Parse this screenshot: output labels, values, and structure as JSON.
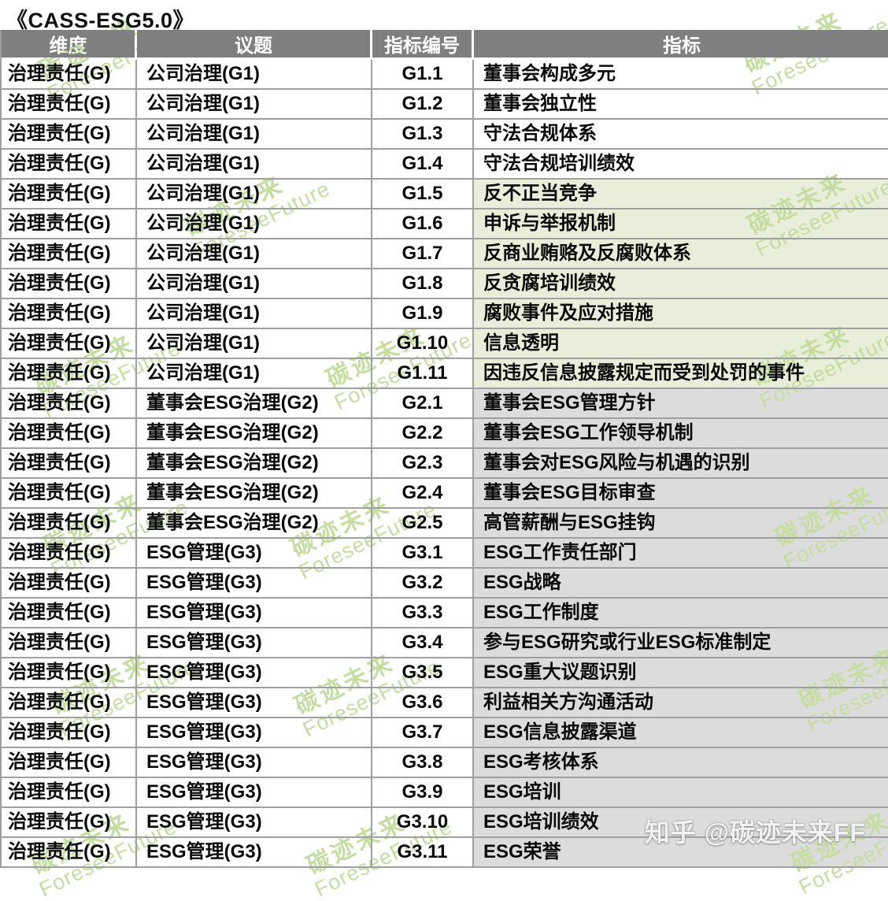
{
  "title": "《CASS-ESG5.0》",
  "watermark": {
    "line1": "碳迹未来",
    "line2": "ForeseeFuture"
  },
  "zhihu_watermark": "知乎 @碳迹未来FF",
  "colors": {
    "header_bg": "#7f7f7f",
    "header_text": "#ffffff",
    "cell_green": "#e9eeda",
    "cell_gray": "#dcdcdc",
    "border": "#a0a0a0",
    "watermark_green": "#c6dda2",
    "zhihu_text": "#f2f2f2"
  },
  "table": {
    "columns": [
      {
        "key": "dimension",
        "label": "维度"
      },
      {
        "key": "topic",
        "label": "议题"
      },
      {
        "key": "code",
        "label": "指标编号"
      },
      {
        "key": "indicator",
        "label": "指标"
      }
    ],
    "rows": [
      {
        "dimension": "治理责任(G)",
        "topic": "公司治理(G1)",
        "code": "G1.1",
        "indicator": "董事会构成多元",
        "highlight": "none"
      },
      {
        "dimension": "治理责任(G)",
        "topic": "公司治理(G1)",
        "code": "G1.2",
        "indicator": "董事会独立性",
        "highlight": "none"
      },
      {
        "dimension": "治理责任(G)",
        "topic": "公司治理(G1)",
        "code": "G1.3",
        "indicator": "守法合规体系",
        "highlight": "none"
      },
      {
        "dimension": "治理责任(G)",
        "topic": "公司治理(G1)",
        "code": "G1.4",
        "indicator": "守法合规培训绩效",
        "highlight": "none"
      },
      {
        "dimension": "治理责任(G)",
        "topic": "公司治理(G1)",
        "code": "G1.5",
        "indicator": "反不正当竞争",
        "highlight": "green"
      },
      {
        "dimension": "治理责任(G)",
        "topic": "公司治理(G1)",
        "code": "G1.6",
        "indicator": "申诉与举报机制",
        "highlight": "green"
      },
      {
        "dimension": "治理责任(G)",
        "topic": "公司治理(G1)",
        "code": "G1.7",
        "indicator": "反商业贿赂及反腐败体系",
        "highlight": "green"
      },
      {
        "dimension": "治理责任(G)",
        "topic": "公司治理(G1)",
        "code": "G1.8",
        "indicator": "反贪腐培训绩效",
        "highlight": "green"
      },
      {
        "dimension": "治理责任(G)",
        "topic": "公司治理(G1)",
        "code": "G1.9",
        "indicator": "腐败事件及应对措施",
        "highlight": "green"
      },
      {
        "dimension": "治理责任(G)",
        "topic": "公司治理(G1)",
        "code": "G1.10",
        "indicator": "信息透明",
        "highlight": "green"
      },
      {
        "dimension": "治理责任(G)",
        "topic": "公司治理(G1)",
        "code": "G1.11",
        "indicator": "因违反信息披露规定而受到处罚的事件",
        "highlight": "green"
      },
      {
        "dimension": "治理责任(G)",
        "topic": "董事会ESG治理(G2)",
        "code": "G2.1",
        "indicator": "董事会ESG管理方针",
        "highlight": "gray"
      },
      {
        "dimension": "治理责任(G)",
        "topic": "董事会ESG治理(G2)",
        "code": "G2.2",
        "indicator": "董事会ESG工作领导机制",
        "highlight": "gray"
      },
      {
        "dimension": "治理责任(G)",
        "topic": "董事会ESG治理(G2)",
        "code": "G2.3",
        "indicator": "董事会对ESG风险与机遇的识别",
        "highlight": "gray"
      },
      {
        "dimension": "治理责任(G)",
        "topic": "董事会ESG治理(G2)",
        "code": "G2.4",
        "indicator": "董事会ESG目标审查",
        "highlight": "gray"
      },
      {
        "dimension": "治理责任(G)",
        "topic": "董事会ESG治理(G2)",
        "code": "G2.5",
        "indicator": "高管薪酬与ESG挂钩",
        "highlight": "gray"
      },
      {
        "dimension": "治理责任(G)",
        "topic": "ESG管理(G3)",
        "code": "G3.1",
        "indicator": "ESG工作责任部门",
        "highlight": "gray"
      },
      {
        "dimension": "治理责任(G)",
        "topic": "ESG管理(G3)",
        "code": "G3.2",
        "indicator": "ESG战略",
        "highlight": "gray"
      },
      {
        "dimension": "治理责任(G)",
        "topic": "ESG管理(G3)",
        "code": "G3.3",
        "indicator": "ESG工作制度",
        "highlight": "gray"
      },
      {
        "dimension": "治理责任(G)",
        "topic": "ESG管理(G3)",
        "code": "G3.4",
        "indicator": "参与ESG研究或行业ESG标准制定",
        "highlight": "gray"
      },
      {
        "dimension": "治理责任(G)",
        "topic": "ESG管理(G3)",
        "code": "G3.5",
        "indicator": "ESG重大议题识别",
        "highlight": "gray"
      },
      {
        "dimension": "治理责任(G)",
        "topic": "ESG管理(G3)",
        "code": "G3.6",
        "indicator": "利益相关方沟通活动",
        "highlight": "gray"
      },
      {
        "dimension": "治理责任(G)",
        "topic": "ESG管理(G3)",
        "code": "G3.7",
        "indicator": "ESG信息披露渠道",
        "highlight": "gray"
      },
      {
        "dimension": "治理责任(G)",
        "topic": "ESG管理(G3)",
        "code": "G3.8",
        "indicator": "ESG考核体系",
        "highlight": "gray"
      },
      {
        "dimension": "治理责任(G)",
        "topic": "ESG管理(G3)",
        "code": "G3.9",
        "indicator": "ESG培训",
        "highlight": "gray"
      },
      {
        "dimension": "治理责任(G)",
        "topic": "ESG管理(G3)",
        "code": "G3.10",
        "indicator": "ESG培训绩效",
        "highlight": "gray"
      },
      {
        "dimension": "治理责任(G)",
        "topic": "ESG管理(G3)",
        "code": "G3.11",
        "indicator": "ESG荣誉",
        "highlight": "gray"
      }
    ]
  }
}
